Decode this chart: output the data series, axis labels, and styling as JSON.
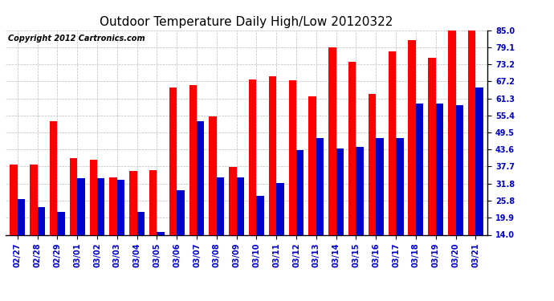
{
  "title": "Outdoor Temperature Daily High/Low 20120322",
  "copyright": "Copyright 2012 Cartronics.com",
  "categories": [
    "02/27",
    "02/28",
    "02/29",
    "03/01",
    "03/02",
    "03/03",
    "03/04",
    "03/05",
    "03/06",
    "03/07",
    "03/08",
    "03/09",
    "03/10",
    "03/11",
    "03/12",
    "03/13",
    "03/14",
    "03/15",
    "03/16",
    "03/17",
    "03/18",
    "03/19",
    "03/20",
    "03/21"
  ],
  "highs": [
    38.5,
    38.5,
    53.5,
    40.5,
    40.0,
    34.0,
    36.0,
    36.5,
    65.0,
    66.0,
    55.0,
    37.5,
    68.0,
    69.0,
    67.5,
    62.0,
    79.0,
    74.0,
    63.0,
    77.5,
    81.5,
    75.5,
    85.0,
    85.0
  ],
  "lows": [
    26.5,
    23.5,
    22.0,
    33.5,
    33.5,
    33.0,
    22.0,
    15.0,
    29.5,
    53.5,
    34.0,
    34.0,
    27.5,
    32.0,
    43.5,
    47.5,
    44.0,
    44.5,
    47.5,
    47.5,
    59.5,
    59.5,
    59.0,
    65.0
  ],
  "ylim": [
    14.0,
    85.0
  ],
  "yticks": [
    14.0,
    19.9,
    25.8,
    31.8,
    37.7,
    43.6,
    49.5,
    55.4,
    61.3,
    67.2,
    73.2,
    79.1,
    85.0
  ],
  "bar_width": 0.38,
  "high_color": "#ff0000",
  "low_color": "#0000cc",
  "bg_color": "#ffffff",
  "grid_color": "#bbbbbb",
  "title_fontsize": 11,
  "tick_fontsize": 7,
  "copyright_fontsize": 7
}
